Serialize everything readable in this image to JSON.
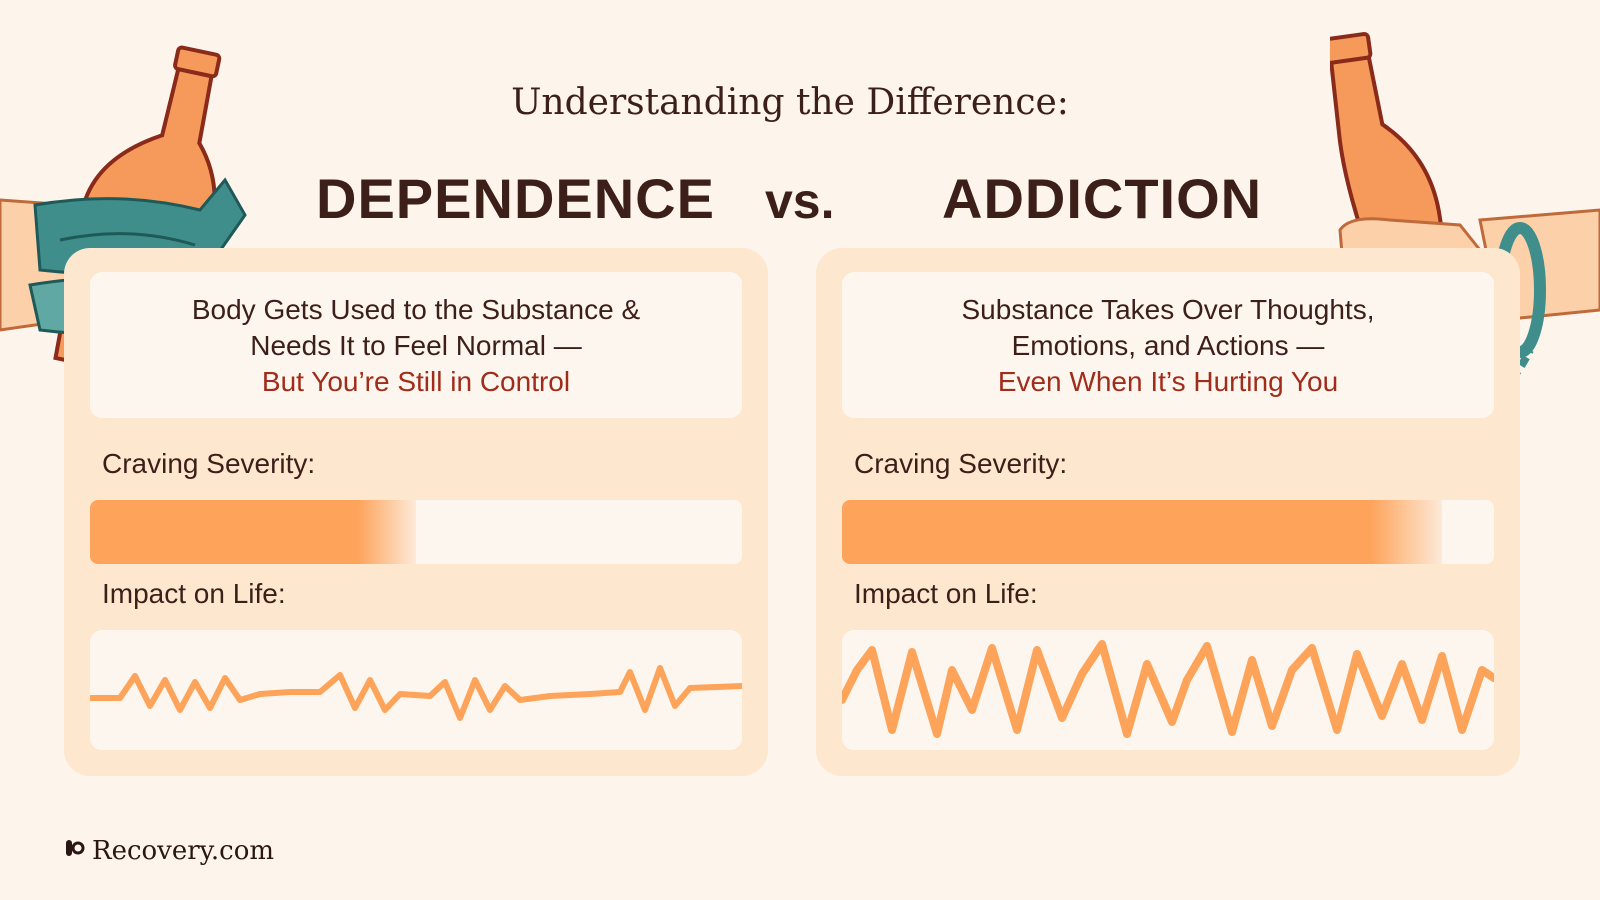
{
  "title": "Understanding the Difference:",
  "left_heading": "DEPENDENCE",
  "vs": "vs.",
  "right_heading": "ADDICTION",
  "panels": [
    {
      "desc_line1": "Body Gets Used to the Substance &",
      "desc_line2": "Needs It to Feel Normal —",
      "desc_highlight": "But You’re Still in Control",
      "craving_label": "Craving Severity:",
      "craving_level": 0.5,
      "impact_label": "Impact on Life:",
      "impact": "mild, intermittent fluctuations"
    },
    {
      "desc_line1": "Substance Takes Over Thoughts,",
      "desc_line2": "Emotions, and Actions —",
      "desc_highlight": "Even When It’s Hurting You",
      "craving_label": "Craving Severity:",
      "craving_level": 0.92,
      "impact_label": "Impact on Life:",
      "impact": "severe, constant fluctuations"
    }
  ],
  "brand": "Recovery.com",
  "colors": {
    "background": "#fdf5ec",
    "panel": "#fde7cf",
    "accent_orange": "#fda35a",
    "highlight_red": "#a02c1b",
    "text_dark": "#3d1f1a",
    "teal": "#3f8e8c"
  },
  "icons": [
    "bottle-wrapped-hand-icon",
    "bottle-handcuffed-hand-icon",
    "recovery-logo-icon"
  ]
}
